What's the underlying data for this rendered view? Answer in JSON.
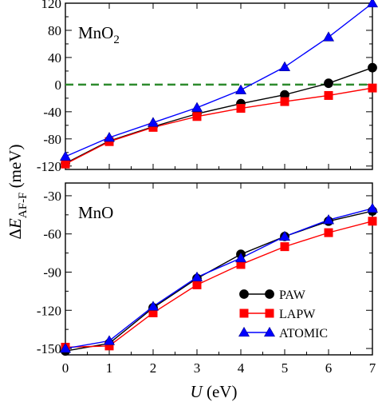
{
  "chart_data": [
    {
      "type": "line",
      "panel_label": "MnO",
      "panel_label_sub": "2",
      "x": [
        0,
        1,
        2,
        3,
        4,
        5,
        6,
        7
      ],
      "xlim": [
        0,
        7
      ],
      "ylim": [
        -125,
        120
      ],
      "yticks": [
        -120,
        -80,
        -40,
        0,
        40,
        80,
        120
      ],
      "reference_line": {
        "y": 0,
        "color": "#2e8b2e",
        "style": "dashed"
      },
      "series": [
        {
          "name": "PAW",
          "color": "#000000",
          "marker": "circle",
          "values": [
            -116,
            -83,
            -62,
            -43,
            -28,
            -15,
            2,
            25
          ]
        },
        {
          "name": "LAPW",
          "color": "#ff0000",
          "marker": "square",
          "values": [
            -117,
            -84,
            -63,
            -47,
            -35,
            -25,
            -16,
            -5
          ]
        },
        {
          "name": "ATOMIC",
          "color": "#0000ff",
          "marker": "triangle",
          "values": [
            -106,
            -78,
            -56,
            -34,
            -8,
            26,
            70,
            120
          ]
        }
      ]
    },
    {
      "type": "line",
      "panel_label": "MnO",
      "panel_label_sub": "",
      "x": [
        0,
        1,
        2,
        3,
        4,
        5,
        6,
        7
      ],
      "xlim": [
        0,
        7
      ],
      "ylim": [
        -155,
        -20
      ],
      "yticks": [
        -150,
        -120,
        -90,
        -60,
        -30
      ],
      "xticks": [
        0,
        1,
        2,
        3,
        4,
        5,
        6,
        7
      ],
      "series": [
        {
          "name": "PAW",
          "color": "#000000",
          "marker": "circle",
          "values": [
            -152,
            -146,
            -118,
            -95,
            -76,
            -62,
            -50,
            -42
          ]
        },
        {
          "name": "LAPW",
          "color": "#ff0000",
          "marker": "square",
          "values": [
            -149,
            -148,
            -122,
            -100,
            -84,
            -70,
            -59,
            -50
          ]
        },
        {
          "name": "ATOMIC",
          "color": "#0000ff",
          "marker": "triangle",
          "values": [
            -150,
            -144,
            -117,
            -94,
            -79,
            -62,
            -49,
            -40
          ]
        }
      ]
    }
  ],
  "axes": {
    "xlabel_main": "U",
    "xlabel_unit": " (eV)",
    "ylabel_prefix": "ΔE",
    "ylabel_sub": "AF-F",
    "ylabel_unit": "  (meV)"
  },
  "legend": {
    "placement": "lower-right of bottom panel",
    "entries": [
      "PAW",
      "LAPW",
      "ATOMIC"
    ]
  }
}
